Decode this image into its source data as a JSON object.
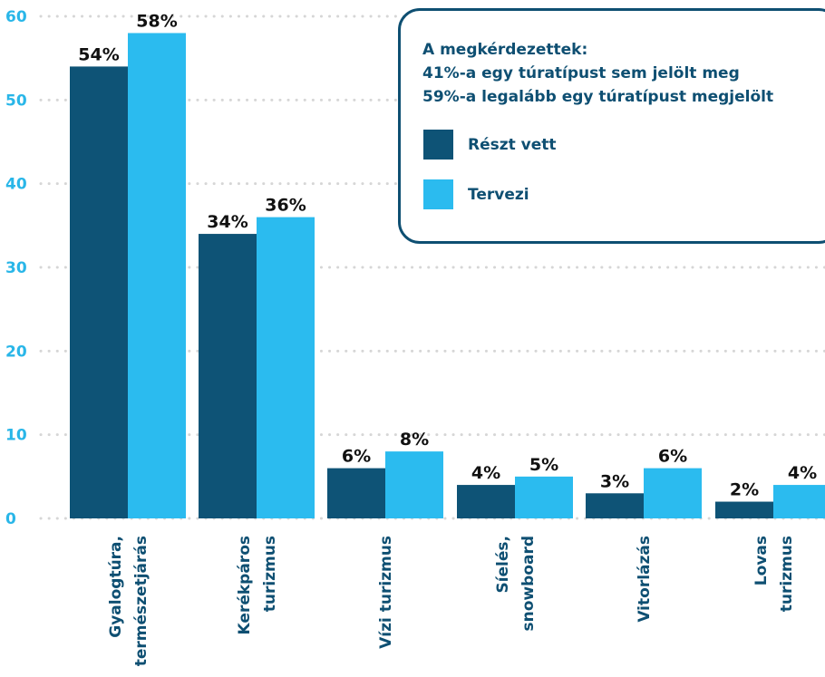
{
  "chart_data": {
    "type": "bar",
    "title": "",
    "xlabel": "",
    "ylabel": "",
    "ylim": [
      0,
      60
    ],
    "yticks": [
      "0",
      "10",
      "20",
      "30",
      "40",
      "50",
      "60"
    ],
    "grid": "dotted horizontal",
    "categories": [
      [
        "Gyalogtúra,",
        "természetjárás"
      ],
      [
        "Kerékpáros",
        "turizmus"
      ],
      [
        "Vízi turizmus"
      ],
      [
        "Síelés,",
        "snowboard"
      ],
      [
        "Vitorlázás"
      ],
      [
        "Lovas",
        "turizmus"
      ]
    ],
    "series": [
      {
        "name": "Részt vett",
        "color": "#0e5376",
        "values": [
          54,
          34,
          6,
          4,
          3,
          2
        ],
        "labels": [
          "54%",
          "34%",
          "6%",
          "4%",
          "3%",
          "2%"
        ]
      },
      {
        "name": "Tervezi",
        "color": "#2bbbef",
        "values": [
          58,
          36,
          8,
          5,
          6,
          4
        ],
        "labels": [
          "58%",
          "36%",
          "8%",
          "5%",
          "6%",
          "4%"
        ]
      }
    ],
    "legend_placement": "top-right"
  },
  "legend": {
    "title_lines": [
      "A megkérdezettek:",
      "41%-a egy túratípust sem jelölt meg",
      "59%-a legalább egy túratípust megjelölt"
    ]
  },
  "colors": {
    "axis_text": "#29b6e8",
    "grid": "#d6d6d6",
    "dark": "#0e5376",
    "light": "#2bbbef",
    "legend_border": "#0e4f72"
  }
}
